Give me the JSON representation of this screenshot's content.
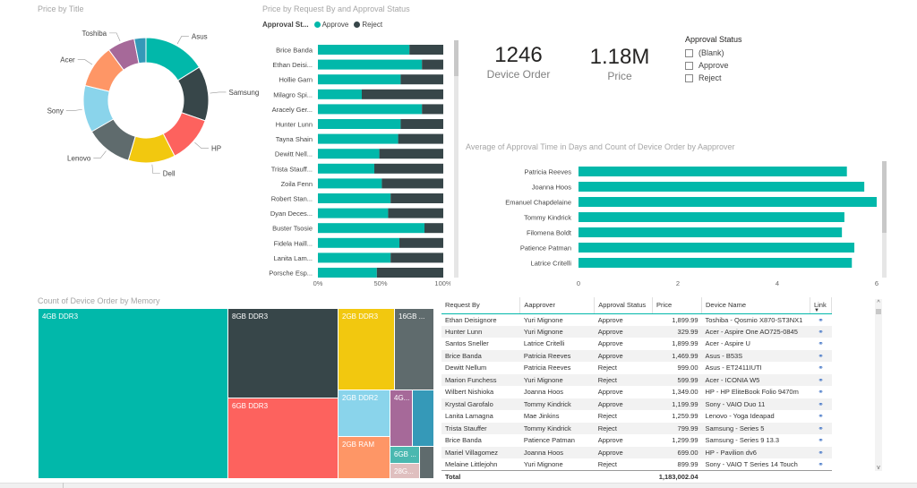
{
  "donut": {
    "title": "Price by Title",
    "slices": [
      {
        "name": "Asus",
        "value": 16,
        "color": "#01b8aa"
      },
      {
        "name": "Samsung",
        "value": 14,
        "color": "#374649"
      },
      {
        "name": "HP",
        "value": 12,
        "color": "#fd625e"
      },
      {
        "name": "Dell",
        "value": 12,
        "color": "#f2c80f"
      },
      {
        "name": "Lenovo",
        "value": 12,
        "color": "#5f6b6d"
      },
      {
        "name": "Sony",
        "value": 12,
        "color": "#8ad4eb"
      },
      {
        "name": "Acer",
        "value": 11,
        "color": "#fe9666"
      },
      {
        "name": "Toshiba",
        "value": 7,
        "color": "#a66999"
      },
      {
        "name": "",
        "value": 3,
        "color": "#3599b8"
      }
    ]
  },
  "stacked": {
    "title": "Price by Request By and Approval Status",
    "legend_title": "Approval St...",
    "legend": [
      {
        "name": "Approve",
        "color": "#01b8aa"
      },
      {
        "name": "Reject",
        "color": "#374649"
      }
    ],
    "x_ticks": [
      "0%",
      "50%",
      "100%"
    ],
    "rows": [
      {
        "name": "Brice Banda",
        "approve": 73
      },
      {
        "name": "Ethan Deisi...",
        "approve": 83
      },
      {
        "name": "Hollie Garn",
        "approve": 66
      },
      {
        "name": "Milagro Spi...",
        "approve": 35
      },
      {
        "name": "Aracely Ger...",
        "approve": 83
      },
      {
        "name": "Hunter Lunn",
        "approve": 66
      },
      {
        "name": "Tayna Shain",
        "approve": 64
      },
      {
        "name": "Dewitt Nell...",
        "approve": 49
      },
      {
        "name": "Trista Stauff...",
        "approve": 45
      },
      {
        "name": "Zoila Fenn",
        "approve": 51
      },
      {
        "name": "Robert Stan...",
        "approve": 58
      },
      {
        "name": "Dyan Deces...",
        "approve": 56
      },
      {
        "name": "Buster Tsosie",
        "approve": 85
      },
      {
        "name": "Fidela Haill...",
        "approve": 65
      },
      {
        "name": "Lanita Lam...",
        "approve": 58
      },
      {
        "name": "Porsche Esp...",
        "approve": 47
      }
    ]
  },
  "cards": {
    "device_order_value": "1246",
    "device_order_label": "Device Order",
    "price_value": "1.18M",
    "price_label": "Price"
  },
  "slicer": {
    "title": "Approval Status",
    "items": [
      "(Blank)",
      "Approve",
      "Reject"
    ]
  },
  "hbar": {
    "title": "Average of Approval Time in Days and Count of Device Order by Aapprover",
    "x_ticks": [
      "0",
      "2",
      "4",
      "6"
    ],
    "xlim": [
      0,
      6
    ],
    "rows": [
      {
        "name": "Patricia Reeves",
        "value": 5.4
      },
      {
        "name": "Joanna Hoos",
        "value": 5.75
      },
      {
        "name": "Emanuel Chapdelaine",
        "value": 6.0
      },
      {
        "name": "Tommy Kindrick",
        "value": 5.35
      },
      {
        "name": "Filomena Boldt",
        "value": 5.3
      },
      {
        "name": "Patience Patman",
        "value": 5.55
      },
      {
        "name": "Latrice Critelli",
        "value": 5.5
      }
    ]
  },
  "treemap": {
    "title": "Count of Device Order by Memory",
    "tiles": [
      {
        "label": "4GB DDR3",
        "color": "#01b8aa"
      },
      {
        "label": "8GB DDR3",
        "color": "#374649"
      },
      {
        "label": "6GB DDR3",
        "color": "#fd625e"
      },
      {
        "label": "2GB DDR3",
        "color": "#f2c80f"
      },
      {
        "label": "16GB ...",
        "color": "#5f6b6d"
      },
      {
        "label": "2GB DDR2",
        "color": "#8ad4eb"
      },
      {
        "label": "4G...",
        "color": "#a66999"
      },
      {
        "label": "",
        "color": "#3599b8"
      },
      {
        "label": "2GB RAM",
        "color": "#fe9666"
      },
      {
        "label": "6GB ...",
        "color": "#4ab8b0"
      },
      {
        "label": "",
        "color": "#5f6b6d"
      },
      {
        "label": "28G...",
        "color": "#dfbfbf"
      }
    ]
  },
  "table": {
    "headers": [
      "Request By",
      "Aapprover",
      "Approval Status",
      "Price",
      "Device Name",
      "Link"
    ],
    "rows": [
      [
        "Ethan Deisignore",
        "Yuri Mignone",
        "Approve",
        "1,899.99",
        "Toshiba - Qosmio X870-ST3NX1"
      ],
      [
        "Hunter Lunn",
        "Yuri Mignone",
        "Approve",
        "329.99",
        "Acer - Aspire One AO725-0845"
      ],
      [
        "Santos Sneller",
        "Latrice Critelli",
        "Approve",
        "1,899.99",
        "Acer - Aspire U"
      ],
      [
        "Brice Banda",
        "Patricia Reeves",
        "Approve",
        "1,469.99",
        "Asus - B53S"
      ],
      [
        "Dewitt Nellum",
        "Patricia Reeves",
        "Reject",
        "999.00",
        "Asus - ET2411IUTI"
      ],
      [
        "Marion Funchess",
        "Yuri Mignone",
        "Reject",
        "599.99",
        "Acer - ICONIA W5"
      ],
      [
        "Wilbert Nishioka",
        "Joanna Hoos",
        "Approve",
        "1,349.00",
        "HP - HP EliteBook Folio 9470m"
      ],
      [
        "Krystal Garofalo",
        "Tommy Kindrick",
        "Approve",
        "1,199.99",
        "Sony - VAIO Duo 11"
      ],
      [
        "Lanita Lamagna",
        "Mae Jinkins",
        "Reject",
        "1,259.99",
        "Lenovo - Yoga Ideapad"
      ],
      [
        "Trista Stauffer",
        "Tommy Kindrick",
        "Reject",
        "799.99",
        "Samsung - Series 5"
      ],
      [
        "Brice Banda",
        "Patience Patman",
        "Approve",
        "1,299.99",
        "Samsung - Series 9 13.3"
      ],
      [
        "Mariel Villagomez",
        "Joanna Hoos",
        "Approve",
        "699.00",
        "HP - Pavilion dv6"
      ],
      [
        "Melaine Littlejohn",
        "Yuri Mignone",
        "Reject",
        "899.99",
        "Sony - VAIO T Series 14 Touch"
      ]
    ],
    "total_label": "Total",
    "total_value": "1,183,002.04"
  },
  "colors": {
    "teal": "#01b8aa",
    "dark": "#374649"
  }
}
